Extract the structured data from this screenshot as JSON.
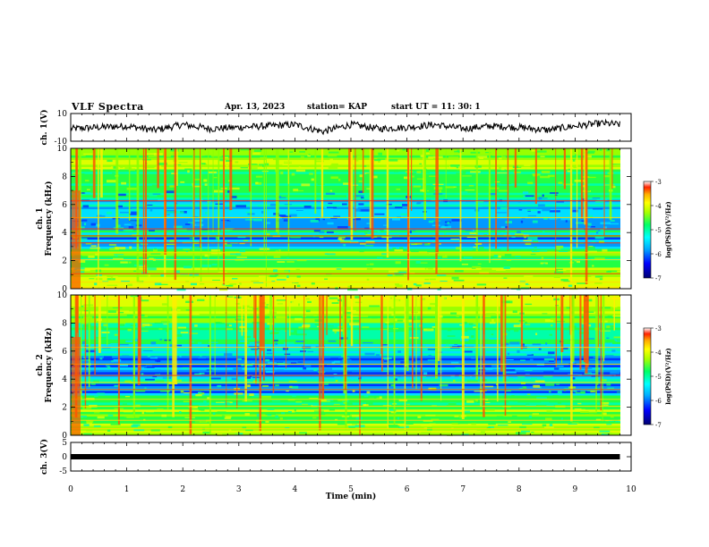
{
  "header": {
    "title": "VLF Spectra",
    "date": "Apr. 13, 2023",
    "station": "station= KAP",
    "start": "start  UT =  11: 30: 1"
  },
  "colors": {
    "colormap": [
      "#000080",
      "#0000ff",
      "#00aaff",
      "#00ffff",
      "#00ff66",
      "#66ff00",
      "#ffff00",
      "#ffaa00",
      "#ff3300",
      "#ffffff"
    ]
  },
  "chart_data": [
    {
      "type": "line",
      "panel": "ch1-waveform",
      "ylabel": "ch. 1(V)",
      "ylim": [
        -10,
        10
      ],
      "yticks": [
        "10",
        "-10"
      ],
      "xlim": [
        0,
        10
      ],
      "x": [
        0,
        0.5,
        1,
        1.5,
        2,
        2.5,
        3,
        3.5,
        4,
        4.5,
        5,
        5.5,
        6,
        6.5,
        7,
        7.5,
        8,
        8.5,
        9,
        9.5,
        9.8
      ],
      "values": [
        -1,
        0,
        1,
        -2,
        2,
        -1,
        0,
        1,
        2,
        -3,
        2,
        -1,
        0,
        2,
        -1,
        1,
        0,
        -2,
        1,
        3,
        2
      ]
    },
    {
      "type": "heatmap",
      "panel": "ch1-spectrogram",
      "ylabel": "ch. 1\nFrequency (kHz)",
      "ylim": [
        0,
        10
      ],
      "yticks": [
        "0",
        "2",
        "4",
        "6",
        "8",
        "10"
      ],
      "xlim": [
        0,
        10
      ],
      "colorbar": {
        "label": "log(PSD)(V²/Hz)",
        "range": [
          -7,
          -3
        ],
        "ticks": [
          "-3",
          "-4",
          "-5",
          "-6",
          "-7"
        ]
      }
    },
    {
      "type": "heatmap",
      "panel": "ch2-spectrogram",
      "ylabel": "ch. 2\nFrequency (kHz)",
      "ylim": [
        0,
        10
      ],
      "yticks": [
        "0",
        "2",
        "4",
        "6",
        "8",
        "10"
      ],
      "xlim": [
        0,
        10
      ],
      "colorbar": {
        "label": "log(PSD)(V²/Hz)",
        "range": [
          -7,
          -3
        ],
        "ticks": [
          "-3",
          "-4",
          "-5",
          "-6",
          "-7"
        ]
      }
    },
    {
      "type": "line",
      "panel": "ch3-waveform",
      "ylabel": "ch. 3(V)",
      "ylim": [
        -5,
        5
      ],
      "yticks": [
        "5",
        "0",
        "-5"
      ],
      "xlim": [
        0,
        10
      ],
      "xlabel": "Time (min)",
      "xticks": [
        "0",
        "1",
        "2",
        "3",
        "4",
        "5",
        "6",
        "7",
        "8",
        "9",
        "10"
      ],
      "x": [
        0,
        9.8
      ],
      "values": [
        0,
        0
      ]
    }
  ]
}
